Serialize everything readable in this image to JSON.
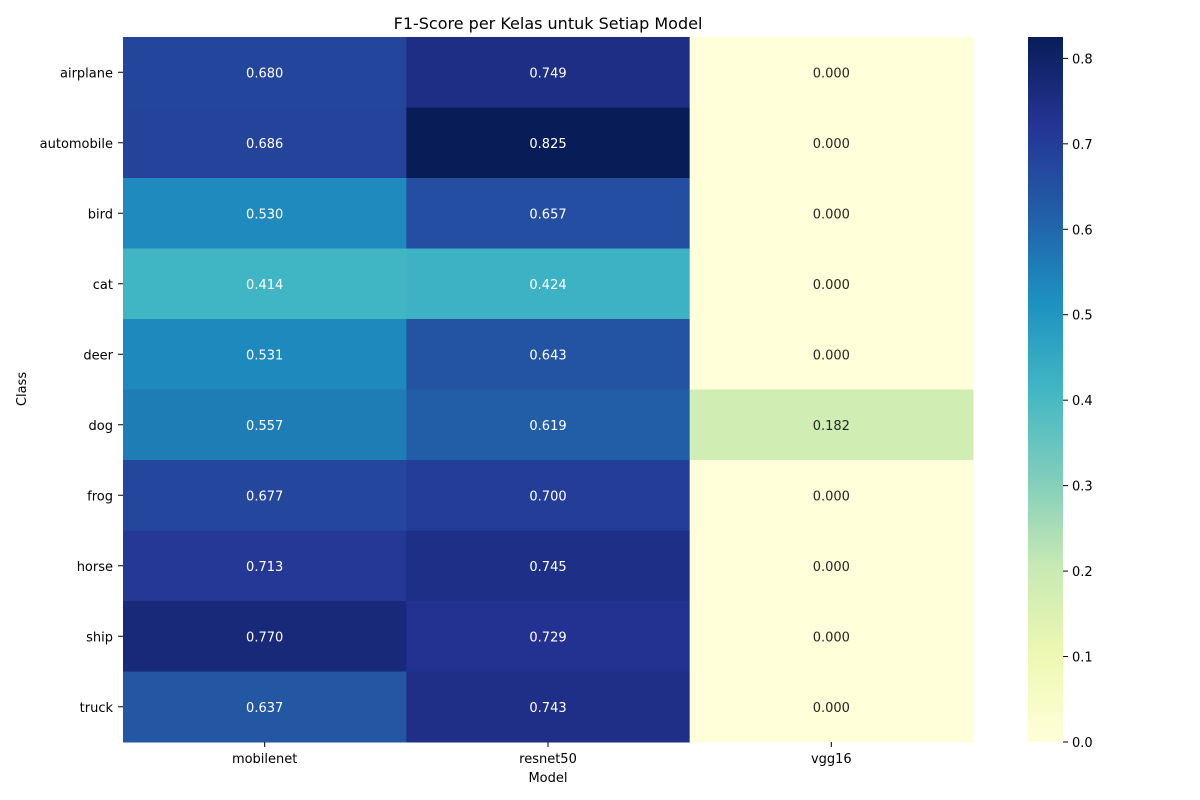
{
  "chart_data": {
    "type": "heatmap",
    "title": "F1-Score per Kelas untuk Setiap Model",
    "xlabel": "Model",
    "ylabel": "Class",
    "x": [
      "mobilenet",
      "resnet50",
      "vgg16"
    ],
    "y": [
      "airplane",
      "automobile",
      "bird",
      "cat",
      "deer",
      "dog",
      "frog",
      "horse",
      "ship",
      "truck"
    ],
    "values": [
      [
        0.68,
        0.749,
        0.0
      ],
      [
        0.686,
        0.825,
        0.0
      ],
      [
        0.53,
        0.657,
        0.0
      ],
      [
        0.414,
        0.424,
        0.0
      ],
      [
        0.531,
        0.643,
        0.0
      ],
      [
        0.557,
        0.619,
        0.182
      ],
      [
        0.677,
        0.7,
        0.0
      ],
      [
        0.713,
        0.745,
        0.0
      ],
      [
        0.77,
        0.729,
        0.0
      ],
      [
        0.637,
        0.743,
        0.0
      ]
    ],
    "cell_labels": [
      [
        "0.680",
        "0.749",
        "0.000"
      ],
      [
        "0.686",
        "0.825",
        "0.000"
      ],
      [
        "0.530",
        "0.657",
        "0.000"
      ],
      [
        "0.414",
        "0.424",
        "0.000"
      ],
      [
        "0.531",
        "0.643",
        "0.000"
      ],
      [
        "0.557",
        "0.619",
        "0.182"
      ],
      [
        "0.677",
        "0.700",
        "0.000"
      ],
      [
        "0.713",
        "0.745",
        "0.000"
      ],
      [
        "0.770",
        "0.729",
        "0.000"
      ],
      [
        "0.637",
        "0.743",
        "0.000"
      ]
    ],
    "colormap": "YlGnBu",
    "colorbar": {
      "range": [
        0.0,
        0.825
      ],
      "ticks": [
        0.0,
        0.1,
        0.2,
        0.3,
        0.4,
        0.5,
        0.6,
        0.7,
        0.8
      ],
      "tick_labels": [
        "0.0",
        "0.1",
        "0.2",
        "0.3",
        "0.4",
        "0.5",
        "0.6",
        "0.7",
        "0.8"
      ]
    },
    "grid": false,
    "legend": "colorbar-right"
  }
}
